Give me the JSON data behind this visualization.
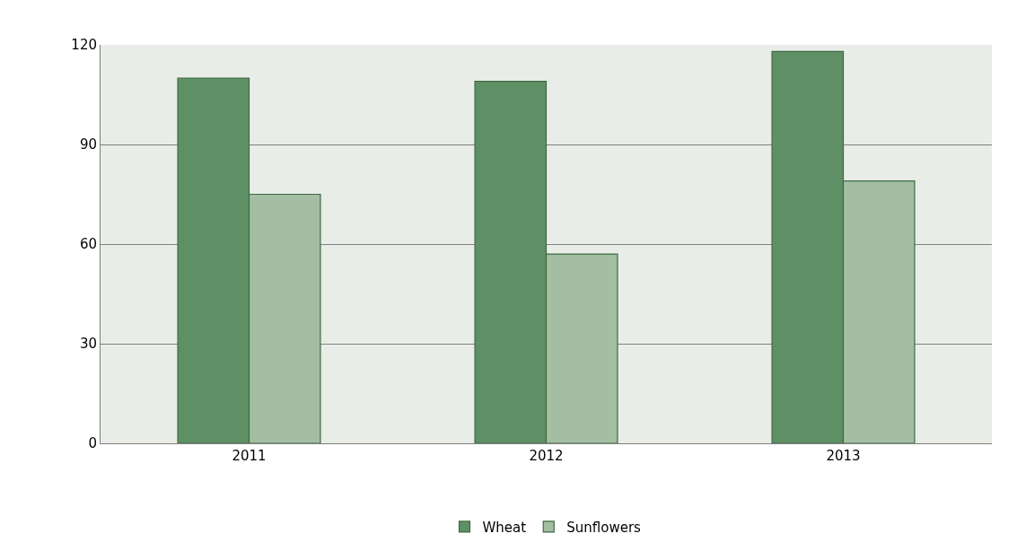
{
  "chart_data": {
    "type": "bar",
    "categories": [
      "2011",
      "2012",
      "2013"
    ],
    "series": [
      {
        "name": "Wheat",
        "color": "#5f9065",
        "values": [
          110,
          109,
          118
        ]
      },
      {
        "name": "Sunflowers",
        "color": "#a3bea3",
        "values": [
          75,
          57,
          79
        ]
      }
    ],
    "ylim": [
      0,
      120
    ],
    "yticks": [
      0,
      30,
      60,
      90,
      120
    ],
    "grid": "y",
    "legend": "bottom"
  }
}
